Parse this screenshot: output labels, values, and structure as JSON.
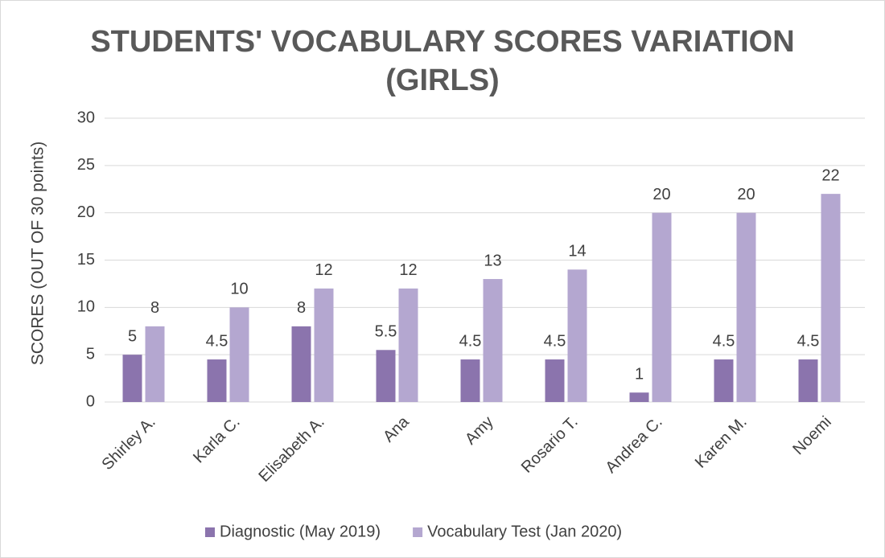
{
  "chart_data": {
    "type": "bar",
    "title": "STUDENTS' VOCABULARY SCORES VARIATION (GIRLS)",
    "y_label": "SCORES  (OUT OF 30 points)",
    "categories": [
      "Shirley A.",
      "Karla C.",
      "Elisabeth A.",
      "Ana",
      "Amy",
      "Rosario T.",
      "Andrea C.",
      "Karen M.",
      "Noemi"
    ],
    "series": [
      {
        "name": "Diagnostic (May 2019)",
        "color": "#8b74ad",
        "values": [
          5,
          4.5,
          8,
          5.5,
          4.5,
          4.5,
          1,
          4.5,
          4.5
        ]
      },
      {
        "name": "Vocabulary Test (Jan 2020)",
        "color": "#b4a7d0",
        "values": [
          8,
          10,
          12,
          12,
          13,
          14,
          20,
          20,
          22
        ]
      }
    ],
    "ylim": [
      0,
      30
    ],
    "yticks": [
      0,
      5,
      10,
      15,
      20,
      25,
      30
    ],
    "grid": true,
    "legend": "bottom"
  }
}
